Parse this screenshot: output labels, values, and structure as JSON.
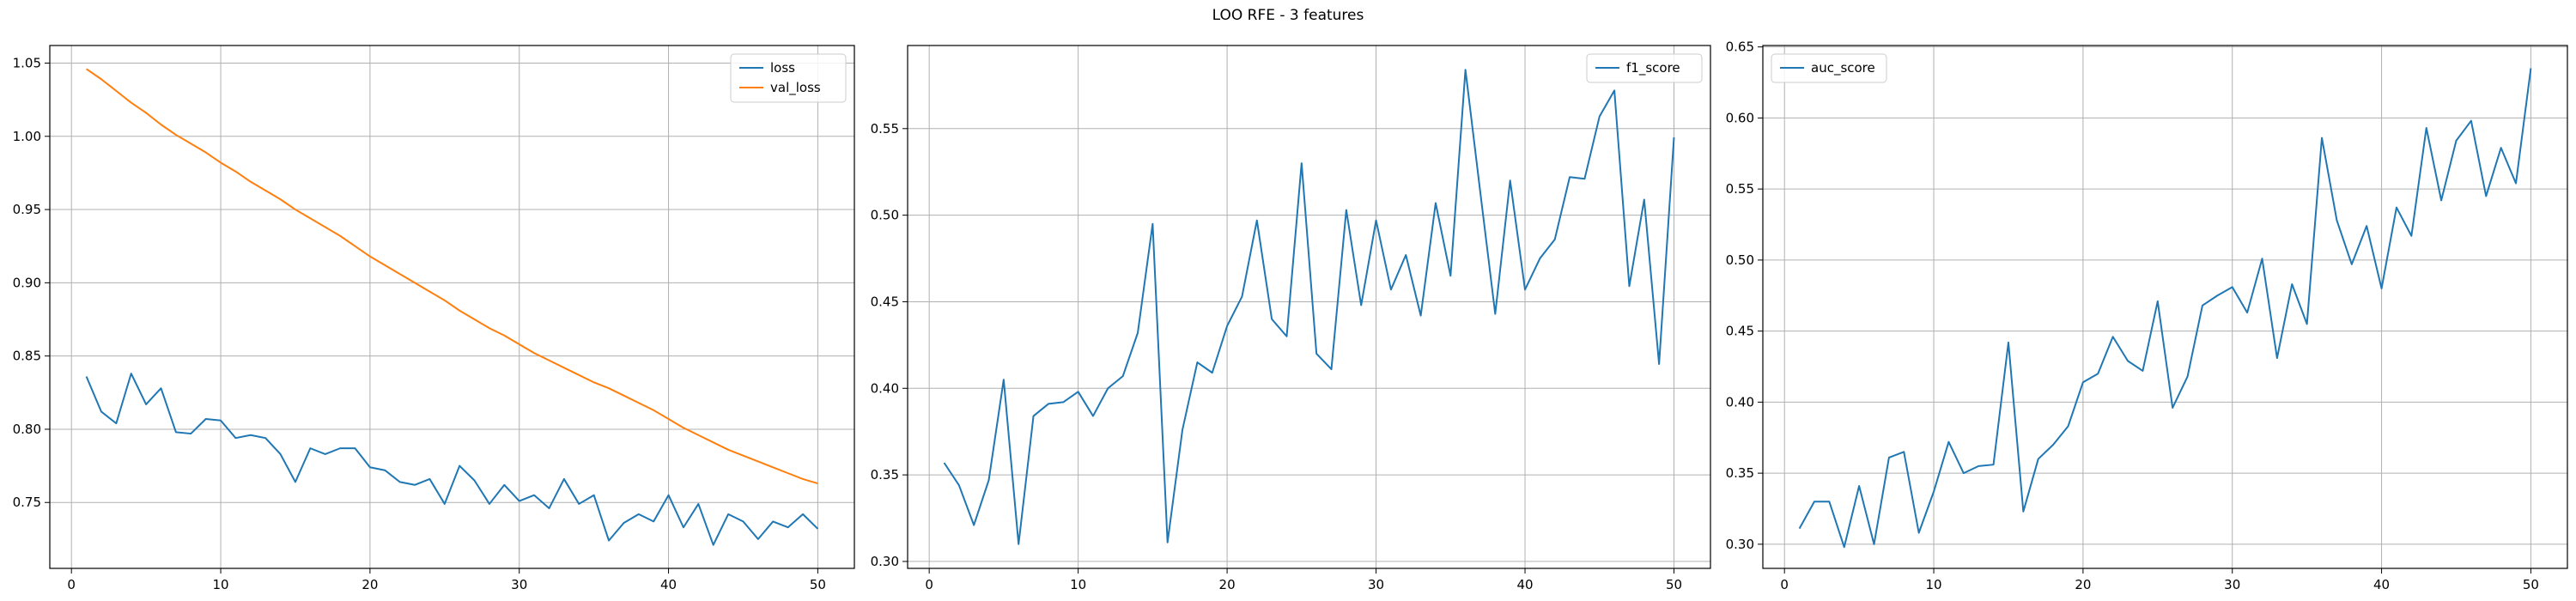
{
  "figure": {
    "title": "LOO RFE - 3 features"
  },
  "chart_data": [
    {
      "type": "line",
      "title": "",
      "xlabel": "",
      "ylabel": "",
      "xlim": [
        -1.45,
        52.45
      ],
      "ylim": [
        0.705,
        1.062
      ],
      "xticks": [
        0,
        10,
        20,
        30,
        40,
        50
      ],
      "yticks": [
        0.75,
        0.8,
        0.85,
        0.9,
        0.95,
        1.0,
        1.05
      ],
      "ytick_labels": [
        "0.75",
        "0.80",
        "0.85",
        "0.90",
        "0.95",
        "1.00",
        "1.05"
      ],
      "grid": true,
      "legend_position": "upper right",
      "x": [
        1,
        2,
        3,
        4,
        5,
        6,
        7,
        8,
        9,
        10,
        11,
        12,
        13,
        14,
        15,
        16,
        17,
        18,
        19,
        20,
        21,
        22,
        23,
        24,
        25,
        26,
        27,
        28,
        29,
        30,
        31,
        32,
        33,
        34,
        35,
        36,
        37,
        38,
        39,
        40,
        41,
        42,
        43,
        44,
        45,
        46,
        47,
        48,
        49,
        50
      ],
      "series": [
        {
          "name": "loss",
          "color": "#1f77b4",
          "values": [
            0.836,
            0.812,
            0.804,
            0.838,
            0.817,
            0.828,
            0.798,
            0.797,
            0.807,
            0.806,
            0.794,
            0.796,
            0.794,
            0.783,
            0.764,
            0.787,
            0.783,
            0.787,
            0.787,
            0.774,
            0.772,
            0.764,
            0.762,
            0.766,
            0.749,
            0.775,
            0.765,
            0.749,
            0.762,
            0.751,
            0.755,
            0.746,
            0.766,
            0.749,
            0.755,
            0.724,
            0.736,
            0.742,
            0.737,
            0.755,
            0.733,
            0.749,
            0.721,
            0.742,
            0.737,
            0.725,
            0.737,
            0.733,
            0.742,
            0.732
          ]
        },
        {
          "name": "val_loss",
          "color": "#ff7f0e",
          "values": [
            1.046,
            1.039,
            1.031,
            1.023,
            1.016,
            1.008,
            1.001,
            0.995,
            0.989,
            0.982,
            0.976,
            0.969,
            0.963,
            0.957,
            0.95,
            0.944,
            0.938,
            0.932,
            0.925,
            0.918,
            0.912,
            0.906,
            0.9,
            0.894,
            0.888,
            0.881,
            0.875,
            0.869,
            0.864,
            0.858,
            0.852,
            0.847,
            0.842,
            0.837,
            0.832,
            0.828,
            0.823,
            0.818,
            0.813,
            0.807,
            0.801,
            0.796,
            0.791,
            0.786,
            0.782,
            0.778,
            0.774,
            0.77,
            0.766,
            0.763
          ]
        }
      ]
    },
    {
      "type": "line",
      "title": "",
      "xlabel": "",
      "ylabel": "",
      "xlim": [
        -1.45,
        52.45
      ],
      "ylim": [
        0.296,
        0.598
      ],
      "xticks": [
        0,
        10,
        20,
        30,
        40,
        50
      ],
      "yticks": [
        0.3,
        0.35,
        0.4,
        0.45,
        0.5,
        0.55
      ],
      "ytick_labels": [
        "0.30",
        "0.35",
        "0.40",
        "0.45",
        "0.50",
        "0.55"
      ],
      "grid": true,
      "legend_position": "upper right",
      "x": [
        1,
        2,
        3,
        4,
        5,
        6,
        7,
        8,
        9,
        10,
        11,
        12,
        13,
        14,
        15,
        16,
        17,
        18,
        19,
        20,
        21,
        22,
        23,
        24,
        25,
        26,
        27,
        28,
        29,
        30,
        31,
        32,
        33,
        34,
        35,
        36,
        37,
        38,
        39,
        40,
        41,
        42,
        43,
        44,
        45,
        46,
        47,
        48,
        49,
        50
      ],
      "series": [
        {
          "name": "f1_score",
          "color": "#1f77b4",
          "values": [
            0.357,
            0.344,
            0.321,
            0.347,
            0.405,
            0.31,
            0.384,
            0.391,
            0.392,
            0.398,
            0.384,
            0.4,
            0.407,
            0.432,
            0.495,
            0.311,
            0.376,
            0.415,
            0.409,
            0.436,
            0.453,
            0.497,
            0.44,
            0.43,
            0.53,
            0.42,
            0.411,
            0.503,
            0.448,
            0.497,
            0.457,
            0.477,
            0.442,
            0.507,
            0.465,
            0.584,
            0.513,
            0.443,
            0.52,
            0.457,
            0.475,
            0.486,
            0.522,
            0.521,
            0.557,
            0.572,
            0.459,
            0.509,
            0.414,
            0.545
          ]
        }
      ]
    },
    {
      "type": "line",
      "title": "",
      "xlabel": "",
      "ylabel": "",
      "xlim": [
        -1.45,
        52.45
      ],
      "ylim": [
        0.283,
        0.651
      ],
      "xticks": [
        0,
        10,
        20,
        30,
        40,
        50
      ],
      "yticks": [
        0.3,
        0.35,
        0.4,
        0.45,
        0.5,
        0.55,
        0.6,
        0.65
      ],
      "ytick_labels": [
        "0.30",
        "0.35",
        "0.40",
        "0.45",
        "0.50",
        "0.55",
        "0.60",
        "0.65"
      ],
      "grid": true,
      "legend_position": "upper left",
      "x": [
        1,
        2,
        3,
        4,
        5,
        6,
        7,
        8,
        9,
        10,
        11,
        12,
        13,
        14,
        15,
        16,
        17,
        18,
        19,
        20,
        21,
        22,
        23,
        24,
        25,
        26,
        27,
        28,
        29,
        30,
        31,
        32,
        33,
        34,
        35,
        36,
        37,
        38,
        39,
        40,
        41,
        42,
        43,
        44,
        45,
        46,
        47,
        48,
        49,
        50
      ],
      "series": [
        {
          "name": "auc_score",
          "color": "#1f77b4",
          "values": [
            0.311,
            0.33,
            0.33,
            0.298,
            0.341,
            0.3,
            0.361,
            0.365,
            0.308,
            0.337,
            0.372,
            0.35,
            0.355,
            0.356,
            0.442,
            0.323,
            0.36,
            0.37,
            0.383,
            0.414,
            0.42,
            0.446,
            0.429,
            0.422,
            0.471,
            0.396,
            0.418,
            0.468,
            0.475,
            0.481,
            0.463,
            0.501,
            0.431,
            0.483,
            0.455,
            0.586,
            0.528,
            0.497,
            0.524,
            0.48,
            0.537,
            0.517,
            0.593,
            0.542,
            0.584,
            0.598,
            0.545,
            0.579,
            0.554,
            0.635
          ]
        }
      ]
    }
  ]
}
